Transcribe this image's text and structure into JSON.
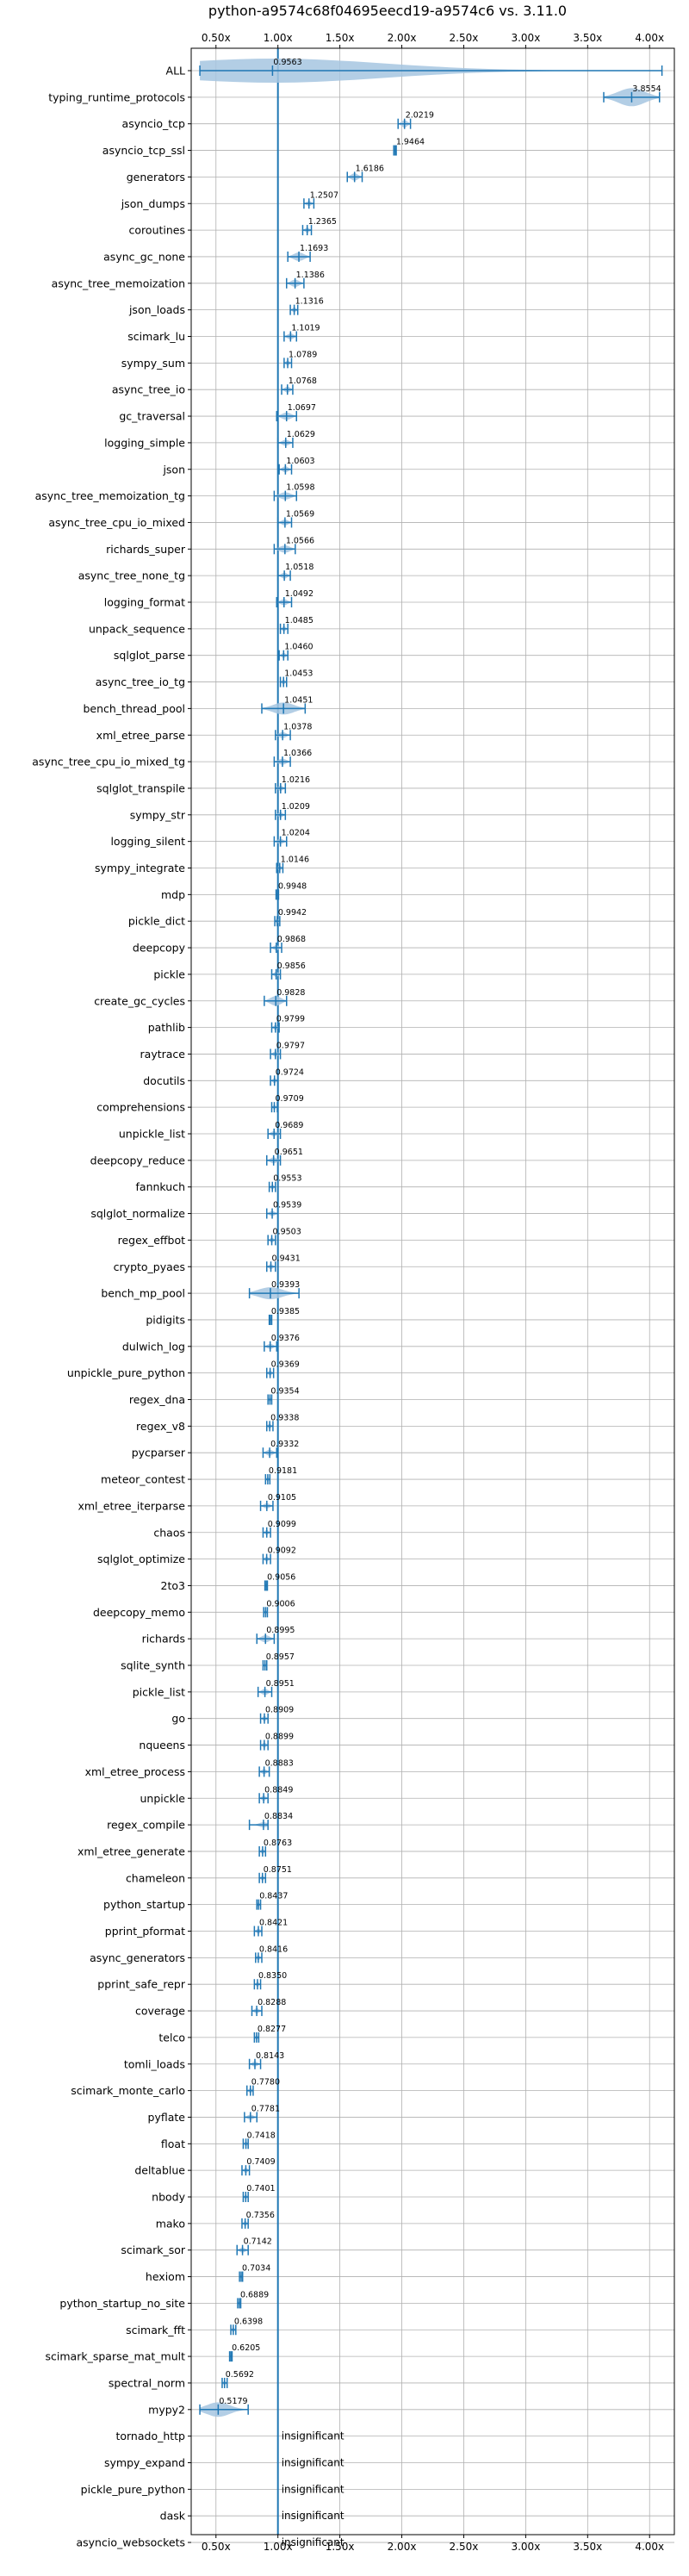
{
  "chart_data": {
    "type": "violin",
    "title": "python-a9574c68f04695eecd19-a9574c6 vs. 3.11.0",
    "xlim": [
      0.3,
      4.2
    ],
    "xticks": [
      0.5,
      1.0,
      1.5,
      2.0,
      2.5,
      3.0,
      3.5,
      4.0
    ],
    "xtick_labels": [
      "0.50x",
      "1.00x",
      "1.50x",
      "2.00x",
      "2.50x",
      "3.00x",
      "3.50x",
      "4.00x"
    ],
    "reference_line": 1.0,
    "grid": true,
    "colors": {
      "violin": "#a6c6e0",
      "marker": "#1f77b4",
      "reference": "#1f77b4"
    },
    "benchmarks": [
      {
        "name": "ALL",
        "label": "0.9563",
        "value": 0.9563,
        "lo": 0.37,
        "hi": 4.1,
        "violin": 0.2
      },
      {
        "name": "typing_runtime_protocols",
        "label": "3.8554",
        "value": 3.8554,
        "lo": 3.63,
        "hi": 4.08,
        "violin": 0.15
      },
      {
        "name": "asyncio_tcp",
        "label": "2.0219",
        "value": 2.0219,
        "lo": 1.97,
        "hi": 2.07,
        "violin": 0.06
      },
      {
        "name": "asyncio_tcp_ssl",
        "label": "1.9464",
        "value": 1.9464,
        "lo": 1.935,
        "hi": 1.955,
        "violin": 0.01
      },
      {
        "name": "generators",
        "label": "1.6186",
        "value": 1.6186,
        "lo": 1.56,
        "hi": 1.68,
        "violin": 0.06
      },
      {
        "name": "json_dumps",
        "label": "1.2507",
        "value": 1.2507,
        "lo": 1.21,
        "hi": 1.29,
        "violin": 0.04
      },
      {
        "name": "coroutines",
        "label": "1.2365",
        "value": 1.2365,
        "lo": 1.2,
        "hi": 1.27,
        "violin": 0.04
      },
      {
        "name": "async_gc_none",
        "label": "1.1693",
        "value": 1.1693,
        "lo": 1.08,
        "hi": 1.26,
        "violin": 0.07
      },
      {
        "name": "async_tree_memoization",
        "label": "1.1386",
        "value": 1.1386,
        "lo": 1.07,
        "hi": 1.21,
        "violin": 0.06
      },
      {
        "name": "json_loads",
        "label": "1.1316",
        "value": 1.1316,
        "lo": 1.1,
        "hi": 1.16,
        "violin": 0.04
      },
      {
        "name": "scimark_lu",
        "label": "1.1019",
        "value": 1.1019,
        "lo": 1.05,
        "hi": 1.15,
        "violin": 0.05
      },
      {
        "name": "sympy_sum",
        "label": "1.0789",
        "value": 1.0789,
        "lo": 1.05,
        "hi": 1.11,
        "violin": 0.04
      },
      {
        "name": "async_tree_io",
        "label": "1.0768",
        "value": 1.0768,
        "lo": 1.03,
        "hi": 1.12,
        "violin": 0.05
      },
      {
        "name": "gc_traversal",
        "label": "1.0697",
        "value": 1.0697,
        "lo": 0.99,
        "hi": 1.15,
        "violin": 0.06
      },
      {
        "name": "logging_simple",
        "label": "1.0629",
        "value": 1.0629,
        "lo": 1.0,
        "hi": 1.12,
        "violin": 0.05
      },
      {
        "name": "json",
        "label": "1.0603",
        "value": 1.0603,
        "lo": 1.01,
        "hi": 1.11,
        "violin": 0.05
      },
      {
        "name": "async_tree_memoization_tg",
        "label": "1.0598",
        "value": 1.0598,
        "lo": 0.97,
        "hi": 1.15,
        "violin": 0.06
      },
      {
        "name": "async_tree_cpu_io_mixed",
        "label": "1.0569",
        "value": 1.0569,
        "lo": 1.0,
        "hi": 1.11,
        "violin": 0.05
      },
      {
        "name": "richards_super",
        "label": "1.0566",
        "value": 1.0566,
        "lo": 0.97,
        "hi": 1.14,
        "violin": 0.06
      },
      {
        "name": "async_tree_none_tg",
        "label": "1.0518",
        "value": 1.0518,
        "lo": 1.0,
        "hi": 1.1,
        "violin": 0.05
      },
      {
        "name": "logging_format",
        "label": "1.0492",
        "value": 1.0492,
        "lo": 0.99,
        "hi": 1.11,
        "violin": 0.05
      },
      {
        "name": "unpack_sequence",
        "label": "1.0485",
        "value": 1.0485,
        "lo": 1.02,
        "hi": 1.08,
        "violin": 0.03
      },
      {
        "name": "sqlglot_parse",
        "label": "1.0460",
        "value": 1.046,
        "lo": 1.01,
        "hi": 1.08,
        "violin": 0.04
      },
      {
        "name": "async_tree_io_tg",
        "label": "1.0453",
        "value": 1.0453,
        "lo": 1.02,
        "hi": 1.07,
        "violin": 0.03
      },
      {
        "name": "bench_thread_pool",
        "label": "1.0451",
        "value": 1.0451,
        "lo": 0.87,
        "hi": 1.22,
        "violin": 0.1
      },
      {
        "name": "xml_etree_parse",
        "label": "1.0378",
        "value": 1.0378,
        "lo": 0.98,
        "hi": 1.1,
        "violin": 0.05
      },
      {
        "name": "async_tree_cpu_io_mixed_tg",
        "label": "1.0366",
        "value": 1.0366,
        "lo": 0.97,
        "hi": 1.1,
        "violin": 0.05
      },
      {
        "name": "sqlglot_transpile",
        "label": "1.0216",
        "value": 1.0216,
        "lo": 0.98,
        "hi": 1.06,
        "violin": 0.04
      },
      {
        "name": "sympy_str",
        "label": "1.0209",
        "value": 1.0209,
        "lo": 0.98,
        "hi": 1.06,
        "violin": 0.04
      },
      {
        "name": "logging_silent",
        "label": "1.0204",
        "value": 1.0204,
        "lo": 0.97,
        "hi": 1.07,
        "violin": 0.04
      },
      {
        "name": "sympy_integrate",
        "label": "1.0146",
        "value": 1.0146,
        "lo": 0.99,
        "hi": 1.04,
        "violin": 0.03
      },
      {
        "name": "mdp",
        "label": "0.9948",
        "value": 0.9948,
        "lo": 0.985,
        "hi": 1.005,
        "violin": 0.01
      },
      {
        "name": "pickle_dict",
        "label": "0.9942",
        "value": 0.9942,
        "lo": 0.975,
        "hi": 1.015,
        "violin": 0.02
      },
      {
        "name": "deepcopy",
        "label": "0.9868",
        "value": 0.9868,
        "lo": 0.94,
        "hi": 1.03,
        "violin": 0.04
      },
      {
        "name": "pickle",
        "label": "0.9856",
        "value": 0.9856,
        "lo": 0.95,
        "hi": 1.02,
        "violin": 0.03
      },
      {
        "name": "create_gc_cycles",
        "label": "0.9828",
        "value": 0.9828,
        "lo": 0.89,
        "hi": 1.07,
        "violin": 0.08
      },
      {
        "name": "pathlib",
        "label": "0.9799",
        "value": 0.9799,
        "lo": 0.95,
        "hi": 1.01,
        "violin": 0.03
      },
      {
        "name": "raytrace",
        "label": "0.9797",
        "value": 0.9797,
        "lo": 0.94,
        "hi": 1.02,
        "violin": 0.04
      },
      {
        "name": "docutils",
        "label": "0.9724",
        "value": 0.9724,
        "lo": 0.94,
        "hi": 1.0,
        "violin": 0.03
      },
      {
        "name": "comprehensions",
        "label": "0.9709",
        "value": 0.9709,
        "lo": 0.95,
        "hi": 0.995,
        "violin": 0.02
      },
      {
        "name": "unpickle_list",
        "label": "0.9689",
        "value": 0.9689,
        "lo": 0.92,
        "hi": 1.02,
        "violin": 0.04
      },
      {
        "name": "deepcopy_reduce",
        "label": "0.9651",
        "value": 0.9651,
        "lo": 0.91,
        "hi": 1.02,
        "violin": 0.05
      },
      {
        "name": "fannkuch",
        "label": "0.9553",
        "value": 0.9553,
        "lo": 0.93,
        "hi": 0.98,
        "violin": 0.02
      },
      {
        "name": "sqlglot_normalize",
        "label": "0.9539",
        "value": 0.9539,
        "lo": 0.91,
        "hi": 1.0,
        "violin": 0.04
      },
      {
        "name": "regex_effbot",
        "label": "0.9503",
        "value": 0.9503,
        "lo": 0.92,
        "hi": 0.98,
        "violin": 0.03
      },
      {
        "name": "crypto_pyaes",
        "label": "0.9431",
        "value": 0.9431,
        "lo": 0.91,
        "hi": 0.98,
        "violin": 0.03
      },
      {
        "name": "bench_mp_pool",
        "label": "0.9393",
        "value": 0.9393,
        "lo": 0.77,
        "hi": 1.17,
        "violin": 0.1
      },
      {
        "name": "pidigits",
        "label": "0.9385",
        "value": 0.9385,
        "lo": 0.93,
        "hi": 0.95,
        "violin": 0.01
      },
      {
        "name": "dulwich_log",
        "label": "0.9376",
        "value": 0.9376,
        "lo": 0.89,
        "hi": 0.99,
        "violin": 0.04
      },
      {
        "name": "unpickle_pure_python",
        "label": "0.9369",
        "value": 0.9369,
        "lo": 0.91,
        "hi": 0.965,
        "violin": 0.03
      },
      {
        "name": "regex_dna",
        "label": "0.9354",
        "value": 0.9354,
        "lo": 0.92,
        "hi": 0.95,
        "violin": 0.01
      },
      {
        "name": "regex_v8",
        "label": "0.9338",
        "value": 0.9338,
        "lo": 0.91,
        "hi": 0.96,
        "violin": 0.02
      },
      {
        "name": "pycparser",
        "label": "0.9332",
        "value": 0.9332,
        "lo": 0.88,
        "hi": 0.99,
        "violin": 0.05
      },
      {
        "name": "meteor_contest",
        "label": "0.9181",
        "value": 0.9181,
        "lo": 0.9,
        "hi": 0.935,
        "violin": 0.01
      },
      {
        "name": "xml_etree_iterparse",
        "label": "0.9105",
        "value": 0.9105,
        "lo": 0.86,
        "hi": 0.96,
        "violin": 0.04
      },
      {
        "name": "chaos",
        "label": "0.9099",
        "value": 0.9099,
        "lo": 0.88,
        "hi": 0.94,
        "violin": 0.03
      },
      {
        "name": "sqlglot_optimize",
        "label": "0.9092",
        "value": 0.9092,
        "lo": 0.88,
        "hi": 0.94,
        "violin": 0.03
      },
      {
        "name": "2to3",
        "label": "0.9056",
        "value": 0.9056,
        "lo": 0.895,
        "hi": 0.915,
        "violin": 0.01
      },
      {
        "name": "deepcopy_memo",
        "label": "0.9006",
        "value": 0.9006,
        "lo": 0.885,
        "hi": 0.915,
        "violin": 0.01
      },
      {
        "name": "richards",
        "label": "0.8995",
        "value": 0.8995,
        "lo": 0.83,
        "hi": 0.97,
        "violin": 0.06
      },
      {
        "name": "sqlite_synth",
        "label": "0.8957",
        "value": 0.8957,
        "lo": 0.88,
        "hi": 0.91,
        "violin": 0.01
      },
      {
        "name": "pickle_list",
        "label": "0.8951",
        "value": 0.8951,
        "lo": 0.84,
        "hi": 0.95,
        "violin": 0.05
      },
      {
        "name": "go",
        "label": "0.8909",
        "value": 0.8909,
        "lo": 0.86,
        "hi": 0.92,
        "violin": 0.03
      },
      {
        "name": "nqueens",
        "label": "0.8899",
        "value": 0.8899,
        "lo": 0.86,
        "hi": 0.92,
        "violin": 0.03
      },
      {
        "name": "xml_etree_process",
        "label": "0.8883",
        "value": 0.8883,
        "lo": 0.85,
        "hi": 0.93,
        "violin": 0.04
      },
      {
        "name": "unpickle",
        "label": "0.8849",
        "value": 0.8849,
        "lo": 0.85,
        "hi": 0.92,
        "violin": 0.03
      },
      {
        "name": "regex_compile",
        "label": "0.8834",
        "value": 0.8834,
        "lo": 0.77,
        "hi": 0.92,
        "violin": 0.04
      },
      {
        "name": "xml_etree_generate",
        "label": "0.8763",
        "value": 0.8763,
        "lo": 0.85,
        "hi": 0.9,
        "violin": 0.02
      },
      {
        "name": "chameleon",
        "label": "0.8751",
        "value": 0.8751,
        "lo": 0.85,
        "hi": 0.9,
        "violin": 0.02
      },
      {
        "name": "python_startup",
        "label": "0.8437",
        "value": 0.8437,
        "lo": 0.83,
        "hi": 0.86,
        "violin": 0.01
      },
      {
        "name": "pprint_pformat",
        "label": "0.8421",
        "value": 0.8421,
        "lo": 0.81,
        "hi": 0.87,
        "violin": 0.03
      },
      {
        "name": "async_generators",
        "label": "0.8416",
        "value": 0.8416,
        "lo": 0.82,
        "hi": 0.87,
        "violin": 0.02
      },
      {
        "name": "pprint_safe_repr",
        "label": "0.8350",
        "value": 0.835,
        "lo": 0.81,
        "hi": 0.86,
        "violin": 0.02
      },
      {
        "name": "coverage",
        "label": "0.8288",
        "value": 0.8288,
        "lo": 0.79,
        "hi": 0.87,
        "violin": 0.03
      },
      {
        "name": "telco",
        "label": "0.8277",
        "value": 0.8277,
        "lo": 0.81,
        "hi": 0.845,
        "violin": 0.02
      },
      {
        "name": "tomli_loads",
        "label": "0.8143",
        "value": 0.8143,
        "lo": 0.77,
        "hi": 0.86,
        "violin": 0.04
      },
      {
        "name": "scimark_monte_carlo",
        "label": "0.7780",
        "value": 0.778,
        "lo": 0.75,
        "hi": 0.8,
        "violin": 0.02
      },
      {
        "name": "pyflate",
        "label": "0.7781",
        "value": 0.7781,
        "lo": 0.73,
        "hi": 0.83,
        "violin": 0.04
      },
      {
        "name": "float",
        "label": "0.7418",
        "value": 0.7418,
        "lo": 0.72,
        "hi": 0.76,
        "violin": 0.02
      },
      {
        "name": "deltablue",
        "label": "0.7409",
        "value": 0.7409,
        "lo": 0.71,
        "hi": 0.77,
        "violin": 0.03
      },
      {
        "name": "nbody",
        "label": "0.7401",
        "value": 0.7401,
        "lo": 0.72,
        "hi": 0.76,
        "violin": 0.02
      },
      {
        "name": "mako",
        "label": "0.7356",
        "value": 0.7356,
        "lo": 0.71,
        "hi": 0.76,
        "violin": 0.02
      },
      {
        "name": "scimark_sor",
        "label": "0.7142",
        "value": 0.7142,
        "lo": 0.67,
        "hi": 0.76,
        "violin": 0.04
      },
      {
        "name": "hexiom",
        "label": "0.7034",
        "value": 0.7034,
        "lo": 0.69,
        "hi": 0.715,
        "violin": 0.01
      },
      {
        "name": "python_startup_no_site",
        "label": "0.6889",
        "value": 0.6889,
        "lo": 0.675,
        "hi": 0.7,
        "violin": 0.01
      },
      {
        "name": "scimark_fft",
        "label": "0.6398",
        "value": 0.6398,
        "lo": 0.62,
        "hi": 0.66,
        "violin": 0.02
      },
      {
        "name": "scimark_sparse_mat_mult",
        "label": "0.6205",
        "value": 0.6205,
        "lo": 0.61,
        "hi": 0.63,
        "violin": 0.01
      },
      {
        "name": "spectral_norm",
        "label": "0.5692",
        "value": 0.5692,
        "lo": 0.55,
        "hi": 0.59,
        "violin": 0.02
      },
      {
        "name": "mypy2",
        "label": "0.5179",
        "value": 0.5179,
        "lo": 0.37,
        "hi": 0.76,
        "violin": 0.12
      },
      {
        "name": "tornado_http",
        "label": "insignificant",
        "value": null
      },
      {
        "name": "sympy_expand",
        "label": "insignificant",
        "value": null
      },
      {
        "name": "pickle_pure_python",
        "label": "insignificant",
        "value": null
      },
      {
        "name": "dask",
        "label": "insignificant",
        "value": null
      },
      {
        "name": "asyncio_websockets",
        "label": "insignificant",
        "value": null
      }
    ]
  }
}
